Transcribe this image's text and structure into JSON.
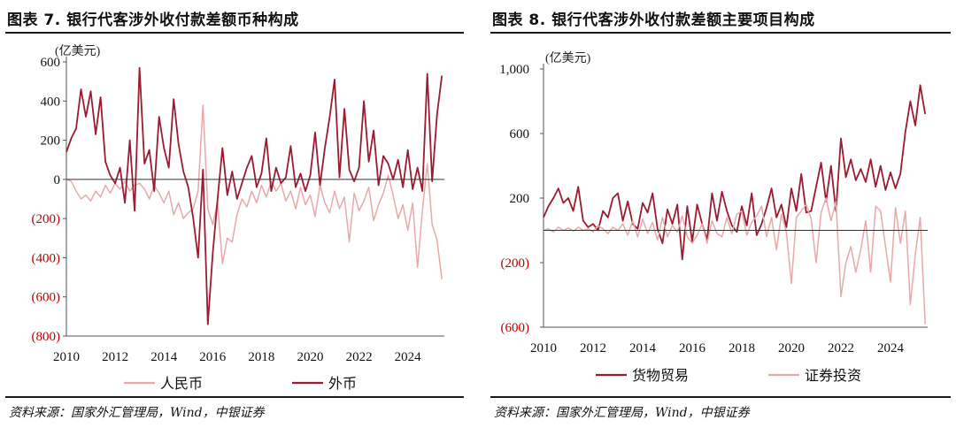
{
  "left_panel": {
    "title": "图表 7. 银行代客涉外收付款差额币种构成",
    "source": "资料来源：国家外汇管理局，Wind，中银证券"
  },
  "right_panel": {
    "title": "图表 8. 银行代客涉外收付款差额主要项目构成",
    "source": "资料来源：国家外汇管理局，Wind，中银证券"
  },
  "colors": {
    "dark": "#9b1b30",
    "light": "#e8a9a9",
    "negative_tick": "#c00000",
    "axis": "#555555"
  },
  "chart_data": [
    {
      "type": "line",
      "unit_label": "(亿美元)",
      "xlabel": "",
      "ylabel": "",
      "xlim": [
        2010,
        2025.5
      ],
      "ylim": [
        -800,
        600
      ],
      "x_ticks": [
        2010,
        2012,
        2014,
        2016,
        2018,
        2020,
        2022,
        2024
      ],
      "y_ticks": [
        600,
        400,
        200,
        0,
        -200,
        -400,
        -600,
        -800
      ],
      "y_tick_labels": [
        "600",
        "400",
        "200",
        "0",
        "(200)",
        "(400)",
        "(600)",
        "(800)"
      ],
      "legend": [
        "人民币",
        "外币"
      ],
      "legend_position": "bottom",
      "series": [
        {
          "name": "人民币",
          "color": "light",
          "x": [
            2010.0,
            2010.2,
            2010.4,
            2010.6,
            2010.8,
            2011.0,
            2011.2,
            2011.4,
            2011.6,
            2011.8,
            2012.0,
            2012.2,
            2012.4,
            2012.6,
            2012.8,
            2013.0,
            2013.2,
            2013.4,
            2013.6,
            2013.8,
            2014.0,
            2014.2,
            2014.4,
            2014.6,
            2014.8,
            2015.0,
            2015.2,
            2015.4,
            2015.6,
            2015.8,
            2016.0,
            2016.2,
            2016.4,
            2016.6,
            2016.8,
            2017.0,
            2017.2,
            2017.4,
            2017.6,
            2017.8,
            2018.0,
            2018.2,
            2018.4,
            2018.6,
            2018.8,
            2019.0,
            2019.2,
            2019.4,
            2019.6,
            2019.8,
            2020.0,
            2020.2,
            2020.4,
            2020.6,
            2020.8,
            2021.0,
            2021.2,
            2021.4,
            2021.6,
            2021.8,
            2022.0,
            2022.2,
            2022.4,
            2022.6,
            2022.8,
            2023.0,
            2023.2,
            2023.4,
            2023.6,
            2023.8,
            2024.0,
            2024.2,
            2024.4,
            2024.6,
            2024.8,
            2025.0,
            2025.2,
            2025.4
          ],
          "y": [
            0,
            -10,
            -60,
            -100,
            -80,
            -110,
            -60,
            -90,
            -30,
            -70,
            -20,
            -50,
            -10,
            -60,
            -30,
            -20,
            -50,
            -100,
            -30,
            -70,
            -120,
            -60,
            -180,
            -120,
            -200,
            -170,
            -150,
            -60,
            380,
            -150,
            -230,
            -120,
            -430,
            -300,
            -320,
            -180,
            -100,
            -140,
            -60,
            -120,
            -30,
            -90,
            -10,
            -60,
            -20,
            -110,
            -60,
            -150,
            -40,
            -130,
            -80,
            -190,
            -30,
            -120,
            -170,
            -60,
            -150,
            -90,
            -320,
            -70,
            -160,
            -110,
            -40,
            -210,
            -130,
            -70,
            20,
            -80,
            -200,
            -130,
            -260,
            -120,
            -450,
            -160,
            80,
            -230,
            -310,
            -510
          ]
        },
        {
          "name": "外币",
          "color": "dark",
          "x": [
            2010.0,
            2010.2,
            2010.4,
            2010.6,
            2010.8,
            2011.0,
            2011.2,
            2011.4,
            2011.6,
            2011.8,
            2012.0,
            2012.2,
            2012.4,
            2012.6,
            2012.8,
            2013.0,
            2013.2,
            2013.4,
            2013.6,
            2013.8,
            2014.0,
            2014.2,
            2014.4,
            2014.6,
            2014.8,
            2015.0,
            2015.2,
            2015.4,
            2015.6,
            2015.8,
            2016.0,
            2016.2,
            2016.4,
            2016.6,
            2016.8,
            2017.0,
            2017.2,
            2017.4,
            2017.6,
            2017.8,
            2018.0,
            2018.2,
            2018.4,
            2018.6,
            2018.8,
            2019.0,
            2019.2,
            2019.4,
            2019.6,
            2019.8,
            2020.0,
            2020.2,
            2020.4,
            2020.6,
            2020.8,
            2021.0,
            2021.2,
            2021.4,
            2021.6,
            2021.8,
            2022.0,
            2022.2,
            2022.4,
            2022.6,
            2022.8,
            2023.0,
            2023.2,
            2023.4,
            2023.6,
            2023.8,
            2024.0,
            2024.2,
            2024.4,
            2024.6,
            2024.8,
            2025.0,
            2025.2,
            2025.4
          ],
          "y": [
            140,
            210,
            260,
            460,
            320,
            450,
            230,
            420,
            90,
            20,
            -20,
            60,
            -120,
            200,
            -160,
            570,
            80,
            150,
            -60,
            320,
            160,
            60,
            410,
            180,
            40,
            -40,
            -200,
            -400,
            50,
            -740,
            -380,
            -100,
            160,
            -80,
            40,
            -100,
            -20,
            60,
            120,
            -40,
            30,
            210,
            -60,
            60,
            -20,
            10,
            170,
            -40,
            30,
            -60,
            20,
            240,
            -30,
            160,
            320,
            510,
            10,
            360,
            50,
            -10,
            60,
            400,
            90,
            250,
            -30,
            120,
            80,
            0,
            100,
            -40,
            150,
            -50,
            60,
            -60,
            540,
            -10,
            330,
            530
          ]
        }
      ]
    },
    {
      "type": "line",
      "unit_label": "(亿美元)",
      "xlabel": "",
      "ylabel": "",
      "xlim": [
        2010,
        2025.5
      ],
      "ylim": [
        -600,
        1000
      ],
      "x_ticks": [
        2010,
        2012,
        2014,
        2016,
        2018,
        2020,
        2022,
        2024
      ],
      "y_ticks": [
        1000,
        600,
        200,
        -200,
        -600
      ],
      "y_tick_labels": [
        "1,000",
        "600",
        "200",
        "(200)",
        "(600)"
      ],
      "legend": [
        "货物贸易",
        "证券投资"
      ],
      "legend_position": "bottom",
      "series": [
        {
          "name": "货物贸易",
          "color": "dark",
          "x": [
            2010.0,
            2010.2,
            2010.4,
            2010.6,
            2010.8,
            2011.0,
            2011.2,
            2011.4,
            2011.6,
            2011.8,
            2012.0,
            2012.2,
            2012.4,
            2012.6,
            2012.8,
            2013.0,
            2013.2,
            2013.4,
            2013.6,
            2013.8,
            2014.0,
            2014.2,
            2014.4,
            2014.6,
            2014.8,
            2015.0,
            2015.2,
            2015.4,
            2015.6,
            2015.8,
            2016.0,
            2016.2,
            2016.4,
            2016.6,
            2016.8,
            2017.0,
            2017.2,
            2017.4,
            2017.6,
            2017.8,
            2018.0,
            2018.2,
            2018.4,
            2018.6,
            2018.8,
            2019.0,
            2019.2,
            2019.4,
            2019.6,
            2019.8,
            2020.0,
            2020.2,
            2020.4,
            2020.6,
            2020.8,
            2021.0,
            2021.2,
            2021.4,
            2021.6,
            2021.8,
            2022.0,
            2022.2,
            2022.4,
            2022.6,
            2022.8,
            2023.0,
            2023.2,
            2023.4,
            2023.6,
            2023.8,
            2024.0,
            2024.2,
            2024.4,
            2024.6,
            2024.8,
            2025.0,
            2025.2,
            2025.4
          ],
          "y": [
            80,
            150,
            200,
            260,
            170,
            200,
            120,
            270,
            60,
            20,
            40,
            0,
            120,
            80,
            200,
            230,
            60,
            180,
            40,
            10,
            170,
            110,
            230,
            10,
            -80,
            130,
            40,
            160,
            -180,
            150,
            -70,
            160,
            40,
            -60,
            230,
            60,
            240,
            120,
            30,
            -10,
            150,
            30,
            230,
            -30,
            40,
            140,
            260,
            80,
            160,
            20,
            260,
            120,
            350,
            110,
            120,
            270,
            420,
            180,
            400,
            120,
            570,
            330,
            440,
            310,
            380,
            300,
            440,
            270,
            400,
            250,
            360,
            260,
            350,
            610,
            800,
            650,
            900,
            720
          ]
        },
        {
          "name": "证券投资",
          "color": "light",
          "x": [
            2010.0,
            2010.2,
            2010.4,
            2010.6,
            2010.8,
            2011.0,
            2011.2,
            2011.4,
            2011.6,
            2011.8,
            2012.0,
            2012.2,
            2012.4,
            2012.6,
            2012.8,
            2013.0,
            2013.2,
            2013.4,
            2013.6,
            2013.8,
            2014.0,
            2014.2,
            2014.4,
            2014.6,
            2014.8,
            2015.0,
            2015.2,
            2015.4,
            2015.6,
            2015.8,
            2016.0,
            2016.2,
            2016.4,
            2016.6,
            2016.8,
            2017.0,
            2017.2,
            2017.4,
            2017.6,
            2017.8,
            2018.0,
            2018.2,
            2018.4,
            2018.6,
            2018.8,
            2019.0,
            2019.2,
            2019.4,
            2019.6,
            2019.8,
            2020.0,
            2020.2,
            2020.4,
            2020.6,
            2020.8,
            2021.0,
            2021.2,
            2021.4,
            2021.6,
            2021.8,
            2022.0,
            2022.2,
            2022.4,
            2022.6,
            2022.8,
            2023.0,
            2023.2,
            2023.4,
            2023.6,
            2023.8,
            2024.0,
            2024.2,
            2024.4,
            2024.6,
            2024.8,
            2025.0,
            2025.2,
            2025.4
          ],
          "y": [
            0,
            10,
            -10,
            20,
            0,
            15,
            -5,
            20,
            0,
            10,
            -10,
            30,
            10,
            -20,
            20,
            0,
            40,
            -30,
            60,
            -40,
            70,
            -20,
            50,
            -60,
            80,
            -40,
            30,
            -10,
            90,
            -40,
            -80,
            -30,
            40,
            -80,
            60,
            -20,
            -40,
            80,
            -20,
            100,
            120,
            -30,
            50,
            90,
            150,
            -40,
            80,
            -120,
            100,
            -10,
            -330,
            80,
            120,
            160,
            70,
            -200,
            110,
            200,
            60,
            180,
            -410,
            -200,
            -100,
            -260,
            -120,
            60,
            -260,
            150,
            120,
            -100,
            -320,
            140,
            -80,
            120,
            -460,
            -150,
            80,
            -580
          ]
        }
      ]
    }
  ]
}
